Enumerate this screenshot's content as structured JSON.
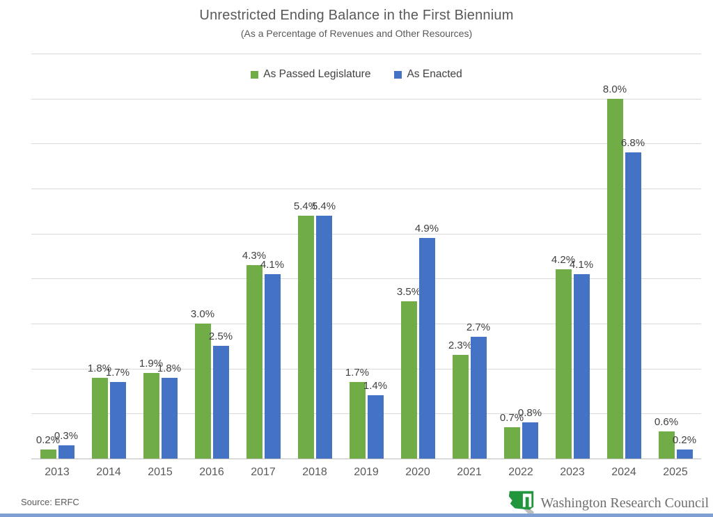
{
  "page": {
    "title": "Unrestricted Ending Balance in the First Biennium",
    "subtitle": "(As a Percentage of Revenues and Other Resources)",
    "source": "Source: ERFC",
    "logo_text": "Washington Research Council",
    "logo_green": "#21963C",
    "bottom_bar_color": "#7E9FD4"
  },
  "chart_data": {
    "type": "bar",
    "title": "Unrestricted Ending Balance in the First Biennium",
    "subtitle": "(As a Percentage of Revenues and Other Resources)",
    "categories": [
      "2013",
      "2014",
      "2015",
      "2016",
      "2017",
      "2018",
      "2019",
      "2020",
      "2021",
      "2022",
      "2023",
      "2024",
      "2025"
    ],
    "series": [
      {
        "name": "As Passed Legislature",
        "color": "#70AD47",
        "values": [
          0.2,
          1.8,
          1.9,
          3.0,
          4.3,
          5.4,
          1.7,
          3.5,
          2.3,
          0.7,
          4.2,
          8.0,
          0.6
        ]
      },
      {
        "name": "As Enacted",
        "color": "#4472C4",
        "values": [
          0.3,
          1.7,
          1.8,
          2.5,
          4.1,
          5.4,
          1.4,
          4.9,
          2.7,
          0.8,
          4.1,
          6.8,
          0.2
        ]
      }
    ],
    "label_format": "{value}%",
    "xlabel": "",
    "ylabel": "",
    "ylim": [
      0,
      9
    ],
    "gridline_step": 1,
    "grid": true,
    "y_axis_labels_visible": false,
    "legend_position": "top-center",
    "data_labels_visible": true,
    "gridline_color": "#d9d9d9",
    "axis_color": "#bdbdbd",
    "label_color": "#404040",
    "tick_color": "#595959"
  }
}
